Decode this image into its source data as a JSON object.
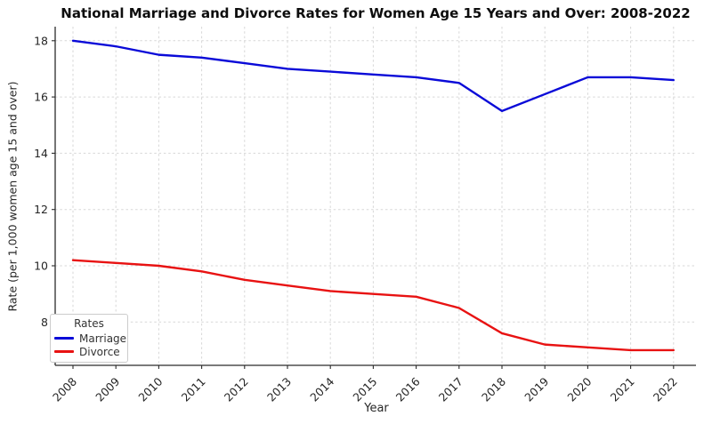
{
  "chart_data": {
    "type": "line",
    "title": "National Marriage and Divorce Rates for Women Age 15 Years and Over: 2008-2022",
    "xlabel": "Year",
    "ylabel": "Rate (per 1,000 women age 15 and over)",
    "x": [
      2008,
      2009,
      2010,
      2011,
      2012,
      2013,
      2014,
      2015,
      2016,
      2017,
      2018,
      2019,
      2020,
      2021,
      2022
    ],
    "series": [
      {
        "name": "Marriage",
        "color": "#0a0ad8",
        "values": [
          18.0,
          17.8,
          17.5,
          17.4,
          17.2,
          17.0,
          16.9,
          16.8,
          16.7,
          16.5,
          15.5,
          16.1,
          16.7,
          16.7,
          16.6
        ]
      },
      {
        "name": "Divorce",
        "color": "#e81212",
        "values": [
          10.2,
          10.1,
          10.0,
          9.8,
          9.5,
          9.3,
          9.1,
          9.0,
          8.9,
          8.5,
          7.6,
          7.2,
          7.1,
          7.0,
          7.0
        ]
      }
    ],
    "yticks": [
      8,
      10,
      12,
      14,
      16,
      18
    ],
    "ylim": [
      6.5,
      18.5
    ],
    "xlim_years": [
      2008,
      2022
    ],
    "grid": true,
    "legend": {
      "title": "Rates",
      "position": "lower left"
    }
  },
  "colors": {
    "background": "#ffffff",
    "grid": "#d7d7d7",
    "spine": "#2b2b2b",
    "text": "#262626",
    "title_text": "#0d0d0d"
  }
}
